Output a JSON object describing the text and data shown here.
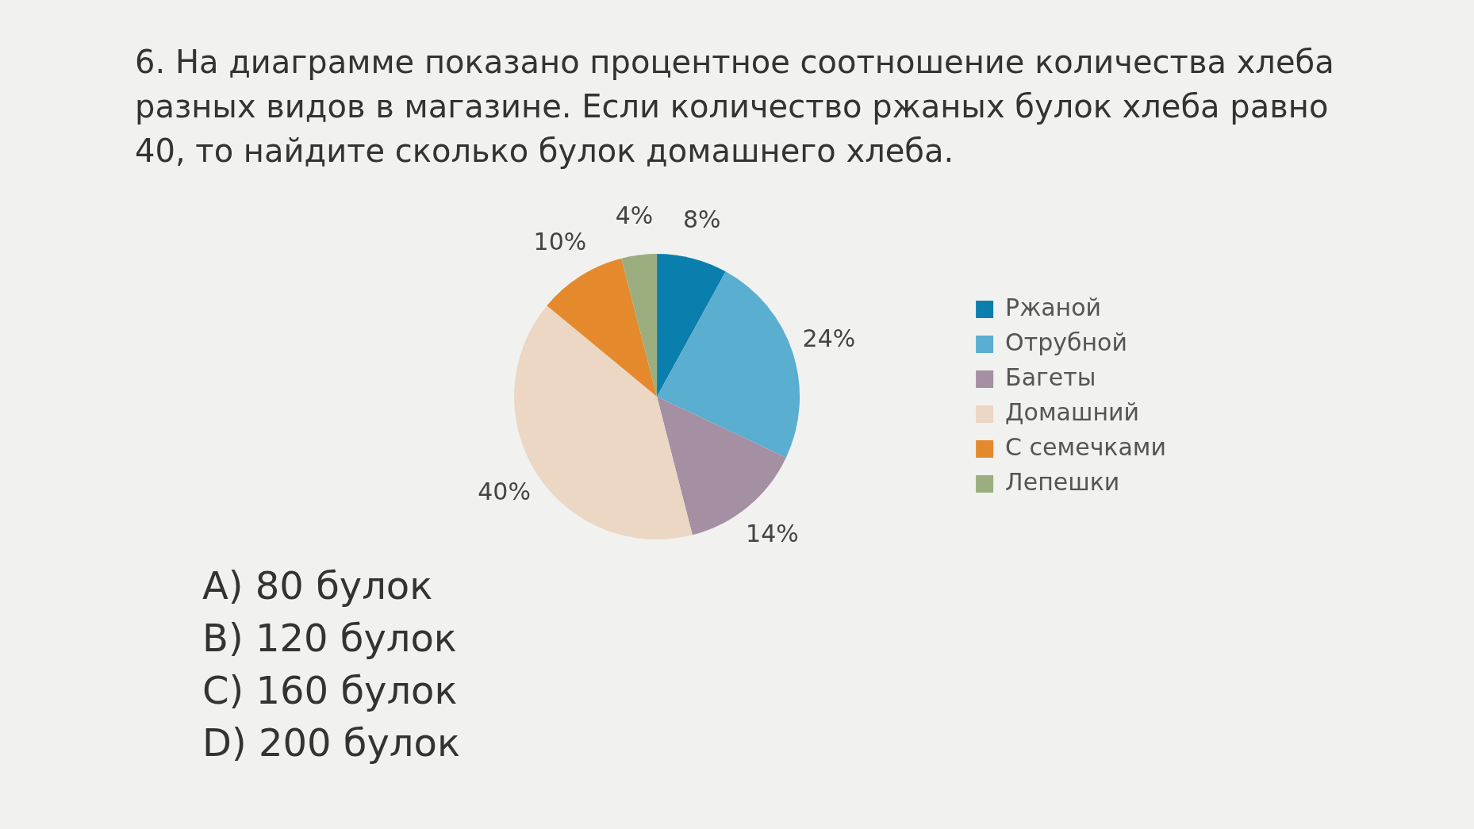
{
  "chart_data": {
    "type": "pie",
    "title": "6. На диаграмме показано процентное соотношение количества хлеба разных видов в магазине. Если количество ржаных булок хлеба равно 40, то найдите сколько булок домашнего хлеба.",
    "categories": [
      "Ржаной",
      "Отрубной",
      "Багеты",
      "Домашний",
      "С семечками",
      "Лепешки"
    ],
    "values": [
      8,
      24,
      14,
      40,
      10,
      4
    ],
    "value_labels": [
      "8%",
      "24%",
      "14%",
      "40%",
      "10%",
      "4%"
    ],
    "colors": [
      "#0a7fae",
      "#5aaed0",
      "#a58fa3",
      "#ecd6c4",
      "#e58a2c",
      "#9aae80"
    ],
    "legend": "right",
    "annotations": [
      "A) 80 булок",
      "B) 120 булок",
      "C) 160 булок",
      "D) 200 булок"
    ]
  }
}
